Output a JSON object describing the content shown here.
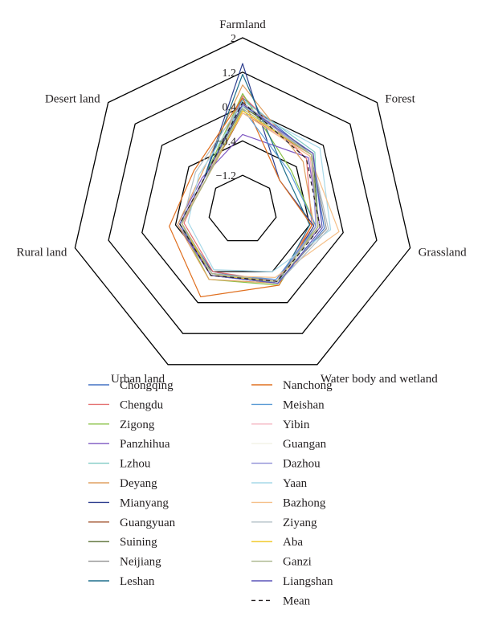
{
  "chart_data": {
    "type": "radar",
    "axes": [
      "Farmland",
      "Forest",
      "Grassland",
      "Water body and wetland",
      "Urban land",
      "Rural land",
      "Desert land"
    ],
    "ticks": [
      {
        "label": "−1.2",
        "value": -1.2
      },
      {
        "label": "−0.4",
        "value": -0.4
      },
      {
        "label": "0.4",
        "value": 0.4
      },
      {
        "label": "1.2",
        "value": 1.2
      },
      {
        "label": "2",
        "value": 2
      }
    ],
    "rlim": [
      -2,
      2
    ],
    "grid": true,
    "legend_position": "bottom",
    "mean_label": "Mean",
    "series": [
      {
        "name": "Chongqing",
        "color": "#4472c4",
        "values": [
          0.6,
          0.05,
          -0.05,
          -0.1,
          -0.4,
          -0.5,
          -0.9
        ]
      },
      {
        "name": "Chengdu",
        "color": "#e57373",
        "values": [
          0.65,
          -0.1,
          -0.35,
          -0.15,
          -0.4,
          -0.6,
          -0.85
        ]
      },
      {
        "name": "Zigong",
        "color": "#8bc34a",
        "values": [
          0.7,
          -0.55,
          -0.25,
          -0.05,
          -0.2,
          -0.5,
          -0.85
        ]
      },
      {
        "name": "Panzhihua",
        "color": "#7e57c2",
        "values": [
          -0.25,
          -0.05,
          -0.15,
          -0.2,
          -0.3,
          -0.45,
          -0.8
        ]
      },
      {
        "name": "Lzhou",
        "color": "#80cbc4",
        "values": [
          0.55,
          0.15,
          -0.2,
          -0.15,
          -0.35,
          -0.55,
          -0.85
        ]
      },
      {
        "name": "Deyang",
        "color": "#e0a060",
        "values": [
          0.9,
          -0.2,
          -0.3,
          -0.1,
          -0.2,
          -0.45,
          -0.75
        ]
      },
      {
        "name": "Mianyang",
        "color": "#2e3f8f",
        "values": [
          1.4,
          -0.9,
          -0.3,
          -0.1,
          -0.3,
          -0.5,
          -0.85
        ]
      },
      {
        "name": "Guangyuan",
        "color": "#a0522d",
        "values": [
          0.25,
          0.05,
          -0.2,
          -0.15,
          -0.35,
          -0.55,
          -0.9
        ]
      },
      {
        "name": "Suining",
        "color": "#556b2f",
        "values": [
          0.4,
          0.1,
          -0.2,
          -0.1,
          -0.3,
          -0.5,
          -0.85
        ]
      },
      {
        "name": "Neijiang",
        "color": "#909090",
        "values": [
          0.45,
          0.05,
          0.0,
          -0.15,
          -0.3,
          -0.55,
          -0.85
        ]
      },
      {
        "name": "Leshan",
        "color": "#1f6f8b",
        "values": [
          1.15,
          -0.7,
          -0.4,
          -0.1,
          -0.35,
          -0.55,
          -0.85
        ]
      },
      {
        "name": "Nanchong",
        "color": "#e07020",
        "values": [
          0.6,
          -0.9,
          -0.35,
          -0.05,
          0.25,
          -0.25,
          -0.55
        ]
      },
      {
        "name": "Meishan",
        "color": "#5b9bd5",
        "values": [
          0.35,
          -0.6,
          -0.25,
          -0.2,
          -0.35,
          -0.5,
          -0.9
        ]
      },
      {
        "name": "Yibin",
        "color": "#f4b6c2",
        "values": [
          0.3,
          0.0,
          -0.2,
          -0.15,
          -0.35,
          -0.55,
          -0.9
        ]
      },
      {
        "name": "Guangan",
        "color": "#f2f2e6",
        "values": [
          0.3,
          0.05,
          -0.2,
          -0.1,
          -0.3,
          -0.5,
          -0.9
        ]
      },
      {
        "name": "Dazhou",
        "color": "#8e8ed6",
        "values": [
          0.45,
          0.05,
          -0.25,
          -0.15,
          -0.3,
          -0.55,
          -0.85
        ]
      },
      {
        "name": "Yaan",
        "color": "#a6d8e8",
        "values": [
          0.4,
          0.3,
          0.1,
          -0.4,
          -0.45,
          -0.7,
          -0.7
        ]
      },
      {
        "name": "Bazhong",
        "color": "#f5c08a",
        "values": [
          0.25,
          0.0,
          0.3,
          -0.25,
          -0.3,
          -0.55,
          -0.85
        ]
      },
      {
        "name": "Ziyang",
        "color": "#b0bec5",
        "values": [
          0.5,
          0.05,
          0.05,
          -0.1,
          -0.35,
          -0.55,
          -0.6
        ]
      },
      {
        "name": "Aba",
        "color": "#f0c419",
        "values": [
          0.3,
          0.05,
          -0.2,
          -0.15,
          -0.3,
          -0.55,
          -0.9
        ]
      },
      {
        "name": "Ganzi",
        "color": "#a8b48a",
        "values": [
          0.35,
          0.05,
          -0.2,
          -0.15,
          -0.35,
          -0.55,
          -0.9
        ]
      },
      {
        "name": "Liangshan",
        "color": "#5a54b8",
        "values": [
          0.45,
          0.1,
          -0.1,
          -0.1,
          -0.3,
          -0.5,
          -0.85
        ]
      }
    ],
    "mean": [
      0.5,
      -0.1,
      -0.15,
      -0.15,
      -0.3,
      -0.5,
      -0.85
    ],
    "mean_color": "#231f20"
  }
}
